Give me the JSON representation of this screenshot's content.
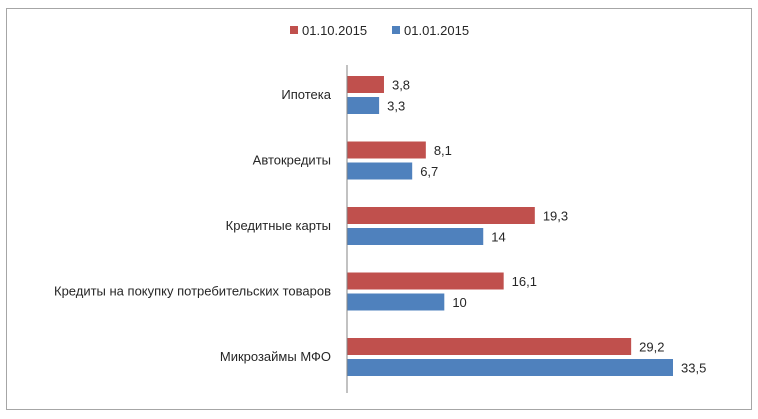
{
  "chart_data": {
    "type": "bar",
    "orientation": "horizontal",
    "categories": [
      "Ипотека",
      "Автокредиты",
      "Кредитные карты",
      "Кредиты на покупку потребительских товаров",
      "Микрозаймы МФО"
    ],
    "series": [
      {
        "name": "01.10.2015",
        "color": "#c0504d",
        "values": [
          3.8,
          8.1,
          19.3,
          16.1,
          29.2
        ],
        "value_labels": [
          "3,8",
          "8,1",
          "19,3",
          "16,1",
          "29,2"
        ]
      },
      {
        "name": "01.01.2015",
        "color": "#4f81bd",
        "values": [
          3.3,
          6.7,
          14,
          10,
          33.5
        ],
        "value_labels": [
          "3,3",
          "6,7",
          "14",
          "10",
          "33,5"
        ]
      }
    ],
    "xlim": [
      0,
      35
    ],
    "grid": false,
    "legend_position": "top"
  }
}
